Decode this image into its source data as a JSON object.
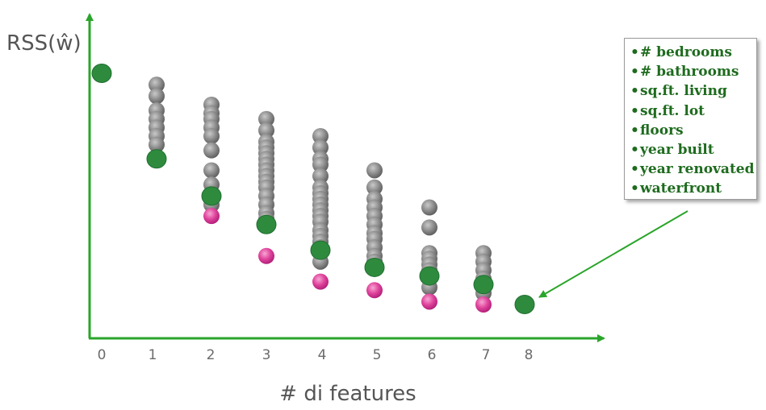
{
  "colors": {
    "axis": "#2aa52a",
    "best": "#2e8b3e",
    "best_edge": "#1f6e2f",
    "other": "#8a8a8a",
    "highlight": "#e0449c",
    "legend_text": "#1e6b1e",
    "arrow": "#2aa52a"
  },
  "chart_data": {
    "type": "scatter",
    "title": "",
    "xlabel": "# di features",
    "ylabel": "RSS(ŵ)",
    "xticks": [
      "0",
      "1",
      "2",
      "3",
      "4",
      "5",
      "6",
      "7",
      "8"
    ],
    "ylim": [
      0,
      100
    ],
    "grid": false,
    "series": [
      {
        "role": "best",
        "color": "#2e8b3e",
        "points": [
          [
            0,
            93
          ],
          [
            1,
            63
          ],
          [
            2,
            50
          ],
          [
            3,
            40
          ],
          [
            4,
            31
          ],
          [
            5,
            25
          ],
          [
            6,
            22
          ],
          [
            7,
            19
          ],
          [
            8,
            12
          ]
        ]
      },
      {
        "role": "other",
        "color": "#8a8a8a",
        "points": [
          [
            1,
            89
          ],
          [
            1,
            85
          ],
          [
            1,
            80
          ],
          [
            1,
            77
          ],
          [
            1,
            74
          ],
          [
            1,
            71
          ],
          [
            1,
            68
          ],
          [
            2,
            82
          ],
          [
            2,
            79
          ],
          [
            2,
            77
          ],
          [
            2,
            74
          ],
          [
            2,
            71
          ],
          [
            2,
            66
          ],
          [
            2,
            59
          ],
          [
            2,
            54
          ],
          [
            2,
            50
          ],
          [
            2,
            47
          ],
          [
            3,
            77
          ],
          [
            3,
            73
          ],
          [
            3,
            69
          ],
          [
            3,
            67
          ],
          [
            3,
            65
          ],
          [
            3,
            63
          ],
          [
            3,
            61
          ],
          [
            3,
            59
          ],
          [
            3,
            57
          ],
          [
            3,
            55
          ],
          [
            3,
            53
          ],
          [
            3,
            50
          ],
          [
            3,
            47
          ],
          [
            3,
            44
          ],
          [
            3,
            42
          ],
          [
            4,
            71
          ],
          [
            4,
            67
          ],
          [
            4,
            63
          ],
          [
            4,
            61
          ],
          [
            4,
            57
          ],
          [
            4,
            53
          ],
          [
            4,
            51
          ],
          [
            4,
            49
          ],
          [
            4,
            47
          ],
          [
            4,
            45
          ],
          [
            4,
            43
          ],
          [
            4,
            41
          ],
          [
            4,
            38
          ],
          [
            4,
            36
          ],
          [
            4,
            34
          ],
          [
            4,
            32
          ],
          [
            4,
            30
          ],
          [
            4,
            27
          ],
          [
            5,
            59
          ],
          [
            5,
            53
          ],
          [
            5,
            49
          ],
          [
            5,
            46
          ],
          [
            5,
            43
          ],
          [
            5,
            40
          ],
          [
            5,
            37
          ],
          [
            5,
            35
          ],
          [
            5,
            32
          ],
          [
            5,
            29
          ],
          [
            5,
            27
          ],
          [
            6,
            46
          ],
          [
            6,
            39
          ],
          [
            6,
            30
          ],
          [
            6,
            28
          ],
          [
            6,
            26
          ],
          [
            6,
            24
          ],
          [
            6,
            21
          ],
          [
            6,
            18
          ],
          [
            7,
            30
          ],
          [
            7,
            27
          ],
          [
            7,
            24
          ],
          [
            7,
            21
          ],
          [
            7,
            18
          ],
          [
            7,
            16
          ]
        ]
      },
      {
        "role": "highlight",
        "color": "#e0449c",
        "points": [
          [
            2,
            43
          ],
          [
            3,
            29
          ],
          [
            4,
            20
          ],
          [
            5,
            17
          ],
          [
            6,
            13
          ],
          [
            7,
            12
          ]
        ]
      }
    ],
    "annotation": {
      "legend_items": [
        "# bedrooms",
        "# bathrooms",
        "sq.ft. living",
        "sq.ft. lot",
        "floors",
        "year built",
        "year renovated",
        "waterfront"
      ],
      "arrow_target": [
        8,
        12
      ]
    }
  }
}
